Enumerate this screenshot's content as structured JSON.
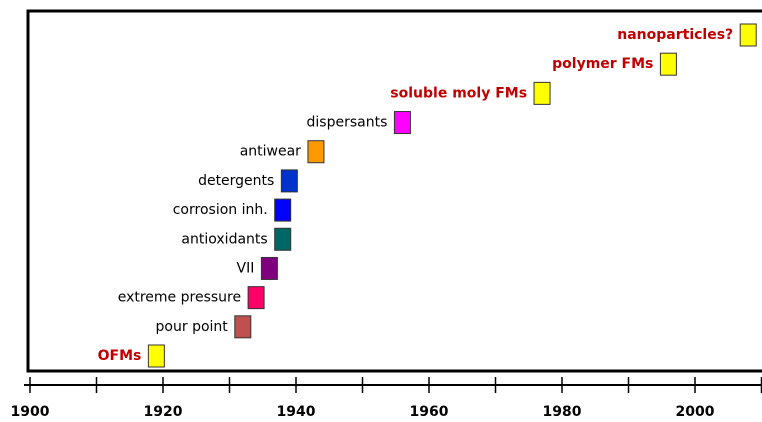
{
  "chart_data": {
    "type": "timeline",
    "categories": [
      "OFMs",
      "pour point",
      "extreme pressure",
      "VII",
      "antioxidants",
      "corrosion inh.",
      "detergents",
      "antiwear",
      "dispersants",
      "soluble moly FMs",
      "polymer FMs",
      "nanoparticles?"
    ],
    "values": [
      1919,
      1932,
      1934,
      1936,
      1938,
      1938,
      1939,
      1943,
      1956,
      1977,
      1996,
      2008
    ],
    "colors": [
      "#ffff00",
      "#c0504d",
      "#ff0066",
      "#7f007f",
      "#006666",
      "#0000ff",
      "#0033cc",
      "#ff9900",
      "#ff00ff",
      "#ffff00",
      "#ffff00",
      "#ffff00"
    ],
    "label_colors": [
      "#c00000",
      "#000000",
      "#000000",
      "#000000",
      "#000000",
      "#000000",
      "#000000",
      "#000000",
      "#000000",
      "#c00000",
      "#c00000",
      "#c00000"
    ],
    "xlim": [
      1900,
      2010
    ],
    "xticks": [
      1900,
      1920,
      1940,
      1960,
      1980,
      2000
    ],
    "minor_xticks": [
      1910,
      1930,
      1950,
      1970,
      1990,
      2010
    ]
  }
}
